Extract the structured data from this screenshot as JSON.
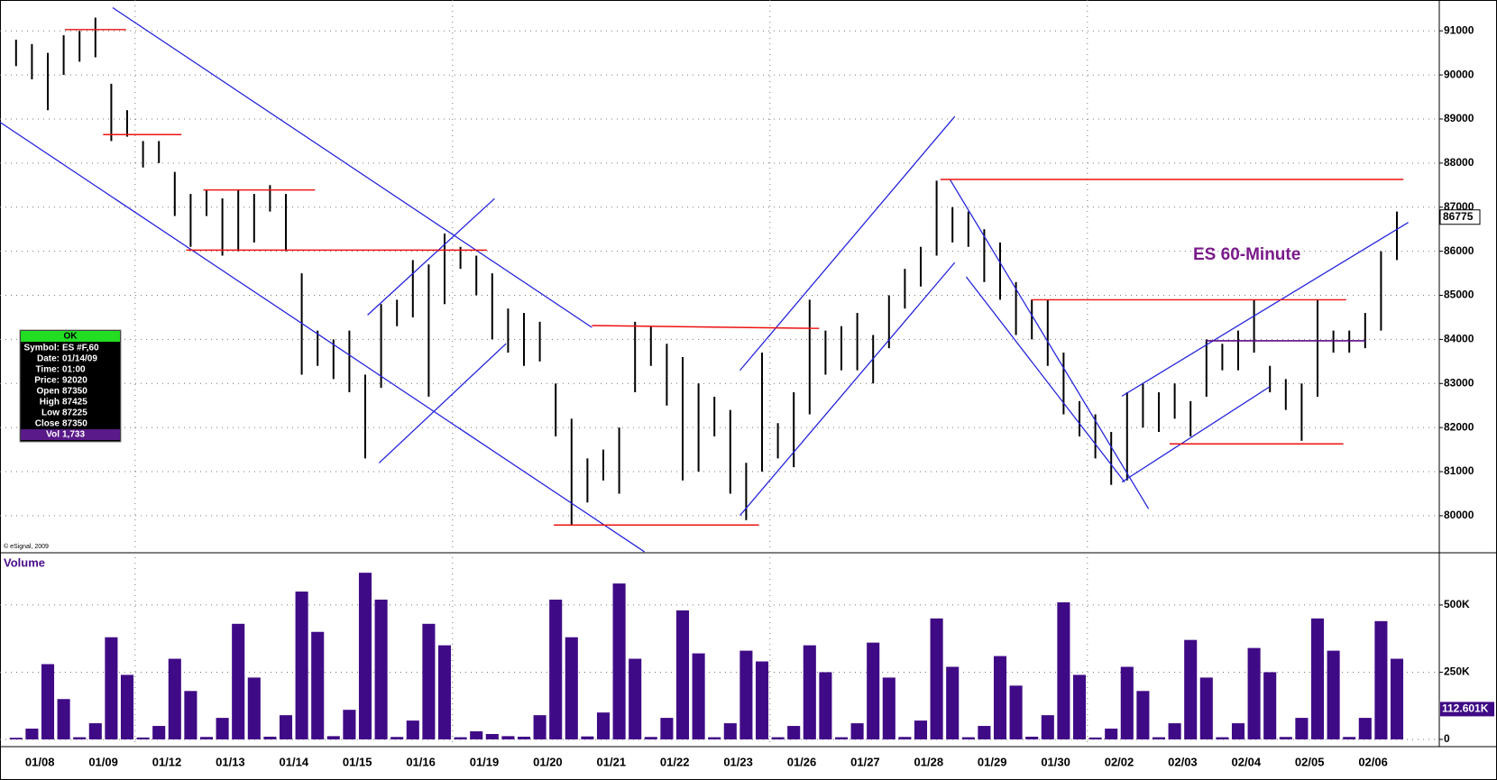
{
  "chart_data": [
    {
      "type": "ohlc",
      "title": "ES 60-Minute",
      "copyright": "© eSignal, 2009",
      "color": "#000000",
      "categories": [
        "01/08",
        "01/09",
        "01/12",
        "01/13",
        "01/14",
        "01/15",
        "01/16",
        "01/19",
        "01/20",
        "01/21",
        "01/22",
        "01/23",
        "01/26",
        "01/27",
        "01/28",
        "01/29",
        "01/30",
        "02/02",
        "02/03",
        "02/04",
        "02/05",
        "02/06"
      ],
      "high": [
        90800,
        90700,
        90500,
        90900,
        91000,
        91300,
        89800,
        89200,
        88500,
        88500,
        87800,
        87300,
        87400,
        87200,
        87400,
        87300,
        87500,
        87300,
        85500,
        84200,
        84000,
        84200,
        83200,
        84800,
        84900,
        85800,
        85700,
        86400,
        86100,
        85900,
        85500,
        84700,
        84600,
        84400,
        83000,
        82200,
        81300,
        81500,
        82000,
        84400,
        84300,
        83900,
        83600,
        83000,
        82700,
        82400,
        81200,
        83700,
        82100,
        82800,
        84900,
        84200,
        84300,
        84600,
        84100,
        85000,
        85600,
        86100,
        87600,
        87000,
        86900,
        86500,
        86200,
        85300,
        84900,
        84900,
        83700,
        82600,
        82300,
        81900,
        82800,
        83000,
        82800,
        83000,
        82600,
        84000,
        83900,
        84200,
        84900,
        83400,
        83100,
        83000,
        84900,
        84200,
        84200,
        84600,
        86000,
        86900
      ],
      "low": [
        90200,
        89900,
        89200,
        90000,
        90300,
        90400,
        88500,
        88600,
        87900,
        88000,
        86800,
        86100,
        86800,
        85900,
        86000,
        86200,
        86900,
        86000,
        83200,
        83400,
        83100,
        82800,
        81300,
        82900,
        84300,
        84500,
        82700,
        84800,
        85600,
        85000,
        84000,
        83700,
        83400,
        83500,
        81800,
        79800,
        80300,
        80800,
        80500,
        82800,
        83400,
        82500,
        80800,
        81000,
        81800,
        80500,
        79900,
        81000,
        81300,
        81100,
        82300,
        83200,
        83300,
        83300,
        83000,
        83800,
        84700,
        85200,
        85900,
        86200,
        86100,
        85300,
        84900,
        84100,
        84000,
        83400,
        82300,
        81800,
        81300,
        80700,
        80800,
        82000,
        81900,
        82200,
        81800,
        82700,
        83300,
        83300,
        83700,
        82800,
        82400,
        81700,
        82700,
        83700,
        83700,
        83800,
        84200,
        85800
      ],
      "last_price": 86775,
      "ylim": [
        79180,
        91700
      ],
      "yticks": [
        80000,
        81000,
        82000,
        83000,
        84000,
        85000,
        86000,
        87000,
        88000,
        89000,
        90000,
        91000
      ],
      "grid": true
    },
    {
      "type": "bar",
      "title": "Volume",
      "color": "#3f0a86",
      "values": [
        6000,
        40000,
        280000,
        150000,
        8000,
        60000,
        380000,
        240000,
        7000,
        50000,
        300000,
        180000,
        9000,
        80000,
        430000,
        230000,
        10000,
        90000,
        550000,
        400000,
        12000,
        110000,
        620000,
        520000,
        9000,
        70000,
        430000,
        350000,
        8000,
        30000,
        20000,
        12000,
        10000,
        90000,
        520000,
        380000,
        11000,
        100000,
        580000,
        300000,
        9000,
        80000,
        480000,
        320000,
        8000,
        60000,
        330000,
        290000,
        8000,
        50000,
        350000,
        250000,
        8000,
        60000,
        360000,
        230000,
        9000,
        70000,
        450000,
        270000,
        8000,
        50000,
        310000,
        200000,
        10000,
        90000,
        510000,
        240000,
        7000,
        40000,
        270000,
        180000,
        8000,
        60000,
        370000,
        230000,
        8000,
        60000,
        340000,
        250000,
        9000,
        80000,
        450000,
        330000,
        9000,
        80000,
        440000,
        300000
      ],
      "last_volume": {
        "value": 112601,
        "label": "112.601K"
      },
      "ylim": [
        -27000,
        691000
      ],
      "yticks": [
        0,
        {
          "value": 250000,
          "label": "250K"
        },
        {
          "value": 500000,
          "label": "500K"
        }
      ],
      "grid": true
    }
  ],
  "info_box": {
    "header": "OK",
    "rows": [
      [
        "Symbol:",
        "ES #F,60"
      ],
      [
        "Date:",
        "01/14/09"
      ],
      [
        "Time:",
        "01:00"
      ],
      [
        "Price:",
        "92020"
      ],
      [
        "Open",
        "87350"
      ],
      [
        "High",
        "87425"
      ],
      [
        "Low",
        "87225"
      ],
      [
        "Close",
        "87350"
      ],
      [
        "Vol",
        "1,733"
      ]
    ]
  }
}
